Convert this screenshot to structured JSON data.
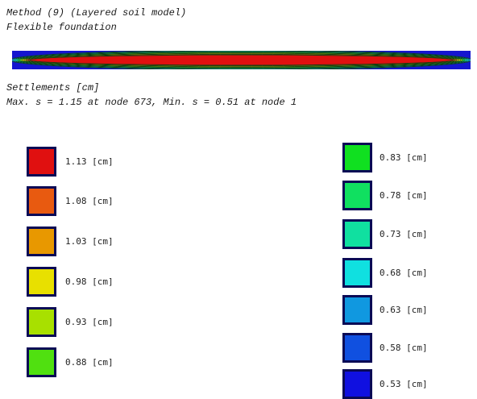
{
  "header": {
    "method": "Method (9) (Layered soil model)",
    "foundation": "Flexible foundation",
    "section_title": "Settlements [cm]",
    "summary": "Max. s = 1.15 at node 673, Min. s = 0.51 at node 1"
  },
  "contour_colors": [
    "#1515d0",
    "#1f5ae8",
    "#1aa0e8",
    "#12d8e0",
    "#18e0a0",
    "#20e050",
    "#9ae010",
    "#f0e000",
    "#f0b020",
    "#e87010",
    "#e83010",
    "#e01010"
  ],
  "legend": {
    "left": [
      {
        "label": "1.13 [cm]",
        "color": "#e01010"
      },
      {
        "label": "1.08 [cm]",
        "color": "#e85a10"
      },
      {
        "label": "1.03 [cm]",
        "color": "#e89800"
      },
      {
        "label": "0.98 [cm]",
        "color": "#e8e000"
      },
      {
        "label": "0.93 [cm]",
        "color": "#a8e000"
      },
      {
        "label": "0.88 [cm]",
        "color": "#50e010"
      }
    ],
    "right": [
      {
        "label": "0.83 [cm]",
        "color": "#10e020"
      },
      {
        "label": "0.78 [cm]",
        "color": "#10e060"
      },
      {
        "label": "0.73 [cm]",
        "color": "#10e0a0"
      },
      {
        "label": "0.68 [cm]",
        "color": "#10e0e0"
      },
      {
        "label": "0.63 [cm]",
        "color": "#1098e0"
      },
      {
        "label": "0.58 [cm]",
        "color": "#1050e0"
      },
      {
        "label": "0.53 [cm]",
        "color": "#1010e0"
      }
    ]
  }
}
